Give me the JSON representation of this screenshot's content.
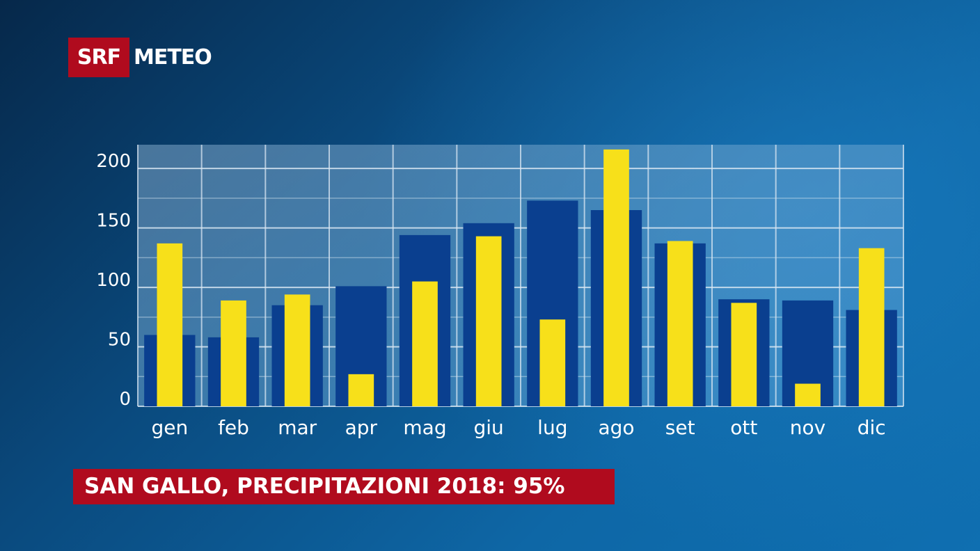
{
  "brand": {
    "channel": "SRF",
    "product": "METEO"
  },
  "caption": "SAN GALLO, PRECIPITAZIONI 2018: 95%",
  "colors": {
    "brand_red": "#b00b1e",
    "series_2018": "#f7e01a",
    "series_norm": "#0a3f8f",
    "grid": "#d8e6f2"
  },
  "chart_data": {
    "type": "bar",
    "categories": [
      "gen",
      "feb",
      "mar",
      "apr",
      "mag",
      "giu",
      "lug",
      "ago",
      "set",
      "ott",
      "nov",
      "dic"
    ],
    "series": [
      {
        "values": [
          60,
          58,
          85,
          101,
          144,
          154,
          173,
          165,
          137,
          90,
          89,
          81
        ]
      },
      {
        "values": [
          137,
          89,
          94,
          27,
          105,
          143,
          73,
          216,
          139,
          87,
          19,
          133
        ]
      }
    ],
    "yticks": [
      0,
      50,
      100,
      150,
      200
    ],
    "ylim": [
      0,
      220
    ],
    "grid": true,
    "title": "",
    "xlabel": "",
    "ylabel": ""
  }
}
